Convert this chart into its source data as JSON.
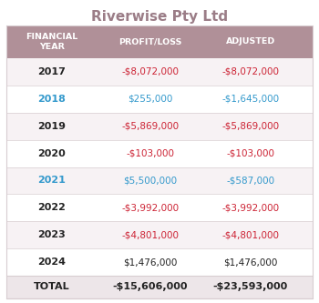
{
  "title": "Riverwise Pty Ltd",
  "title_color": "#9b7d87",
  "header_bg": "#b09098",
  "header_text_color": "#ffffff",
  "col_headers": [
    "FINANCIAL\nYEAR",
    "PROFIT/LOSS",
    "ADJUSTED"
  ],
  "rows": [
    {
      "year": "2017",
      "year_color": "#222222",
      "pl": "-$8,072,000",
      "pl_color": "#cc2233",
      "adj": "-$8,072,000",
      "adj_color": "#cc2233"
    },
    {
      "year": "2018",
      "year_color": "#3399cc",
      "pl": "$255,000",
      "pl_color": "#3399cc",
      "adj": "-$1,645,000",
      "adj_color": "#3399cc"
    },
    {
      "year": "2019",
      "year_color": "#222222",
      "pl": "-$5,869,000",
      "pl_color": "#cc2233",
      "adj": "-$5,869,000",
      "adj_color": "#cc2233"
    },
    {
      "year": "2020",
      "year_color": "#222222",
      "pl": "-$103,000",
      "pl_color": "#cc2233",
      "adj": "-$103,000",
      "adj_color": "#cc2233"
    },
    {
      "year": "2021",
      "year_color": "#3399cc",
      "pl": "$5,500,000",
      "pl_color": "#3399cc",
      "adj": "-$587,000",
      "adj_color": "#3399cc"
    },
    {
      "year": "2022",
      "year_color": "#222222",
      "pl": "-$3,992,000",
      "pl_color": "#cc2233",
      "adj": "-$3,992,000",
      "adj_color": "#cc2233"
    },
    {
      "year": "2023",
      "year_color": "#222222",
      "pl": "-$4,801,000",
      "pl_color": "#cc2233",
      "adj": "-$4,801,000",
      "adj_color": "#cc2233"
    },
    {
      "year": "2024",
      "year_color": "#222222",
      "pl": "$1,476,000",
      "pl_color": "#222222",
      "adj": "$1,476,000",
      "adj_color": "#222222"
    }
  ],
  "total_row": {
    "year": "TOTAL",
    "year_color": "#222222",
    "pl": "-$15,606,000",
    "pl_color": "#222222",
    "adj": "-$23,593,000",
    "adj_color": "#222222"
  },
  "row_bg_odd": "#f7f2f4",
  "row_bg_even": "#ffffff",
  "total_bg": "#ede6e9",
  "divider_color": "#d8cdd1",
  "background": "#ffffff"
}
